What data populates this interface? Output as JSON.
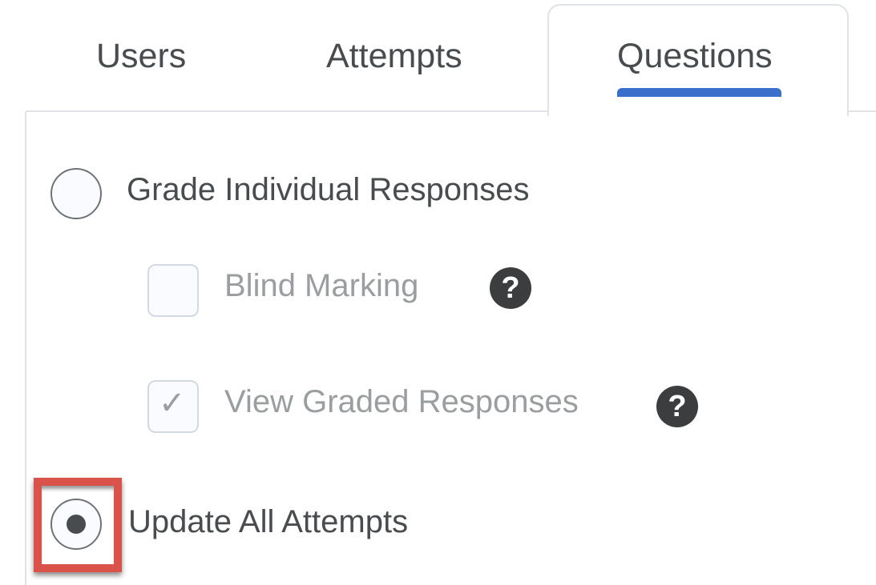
{
  "tabs": [
    {
      "label": "Users",
      "active": false
    },
    {
      "label": "Attempts",
      "active": false
    },
    {
      "label": "Questions",
      "active": true
    }
  ],
  "accent_color": "#3a6fcb",
  "highlight_color": "#d9534a",
  "options": {
    "grade_individual": {
      "label": "Grade Individual Responses",
      "selected": false
    },
    "blind_marking": {
      "label": "Blind Marking",
      "checked": false,
      "disabled": true,
      "help_icon": "question-circle-icon"
    },
    "view_graded": {
      "label": "View Graded Responses",
      "checked": true,
      "disabled": true,
      "help_icon": "question-circle-icon"
    },
    "update_all": {
      "label": "Update All Attempts",
      "selected": true
    }
  },
  "help_glyph": "?",
  "check_glyph": "✓"
}
